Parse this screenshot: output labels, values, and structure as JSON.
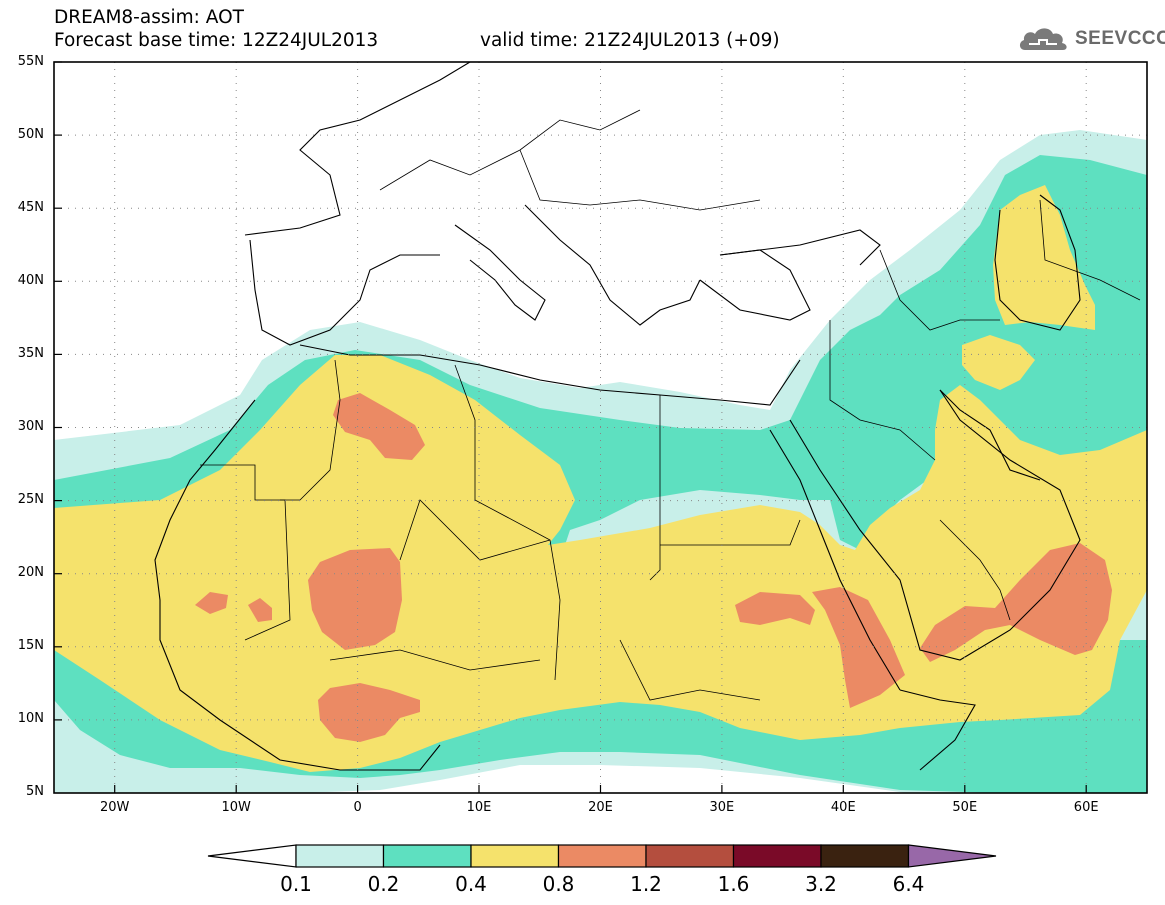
{
  "header": {
    "title": "DREAM8-assim: AOT",
    "base_time": "Forecast base time: 12Z24JUL2013",
    "valid_time": "valid time: 21Z24JUL2013 (+09)"
  },
  "logo": {
    "text": "SEEVCCC",
    "icon": "cloud-icon",
    "color": "#6a6a6a"
  },
  "axes": {
    "lat_labels": [
      "55N",
      "50N",
      "45N",
      "40N",
      "35N",
      "30N",
      "25N",
      "20N",
      "15N",
      "10N",
      "5N"
    ],
    "lon_labels": [
      "20W",
      "10W",
      "0",
      "10E",
      "20E",
      "30E",
      "40E",
      "50E",
      "60E"
    ],
    "lat_range": [
      5,
      55
    ],
    "lon_range": [
      -25,
      65
    ],
    "grid": "dotted"
  },
  "colorbar": {
    "labels": [
      "0.1",
      "0.2",
      "0.4",
      "0.8",
      "1.2",
      "1.6",
      "3.2",
      "6.4"
    ],
    "colors": [
      "#c8efe9",
      "#5ee0c0",
      "#f5e26c",
      "#eb8a64",
      "#b44e3e",
      "#7a0a28",
      "#3a2210",
      "#9868a8"
    ]
  }
}
